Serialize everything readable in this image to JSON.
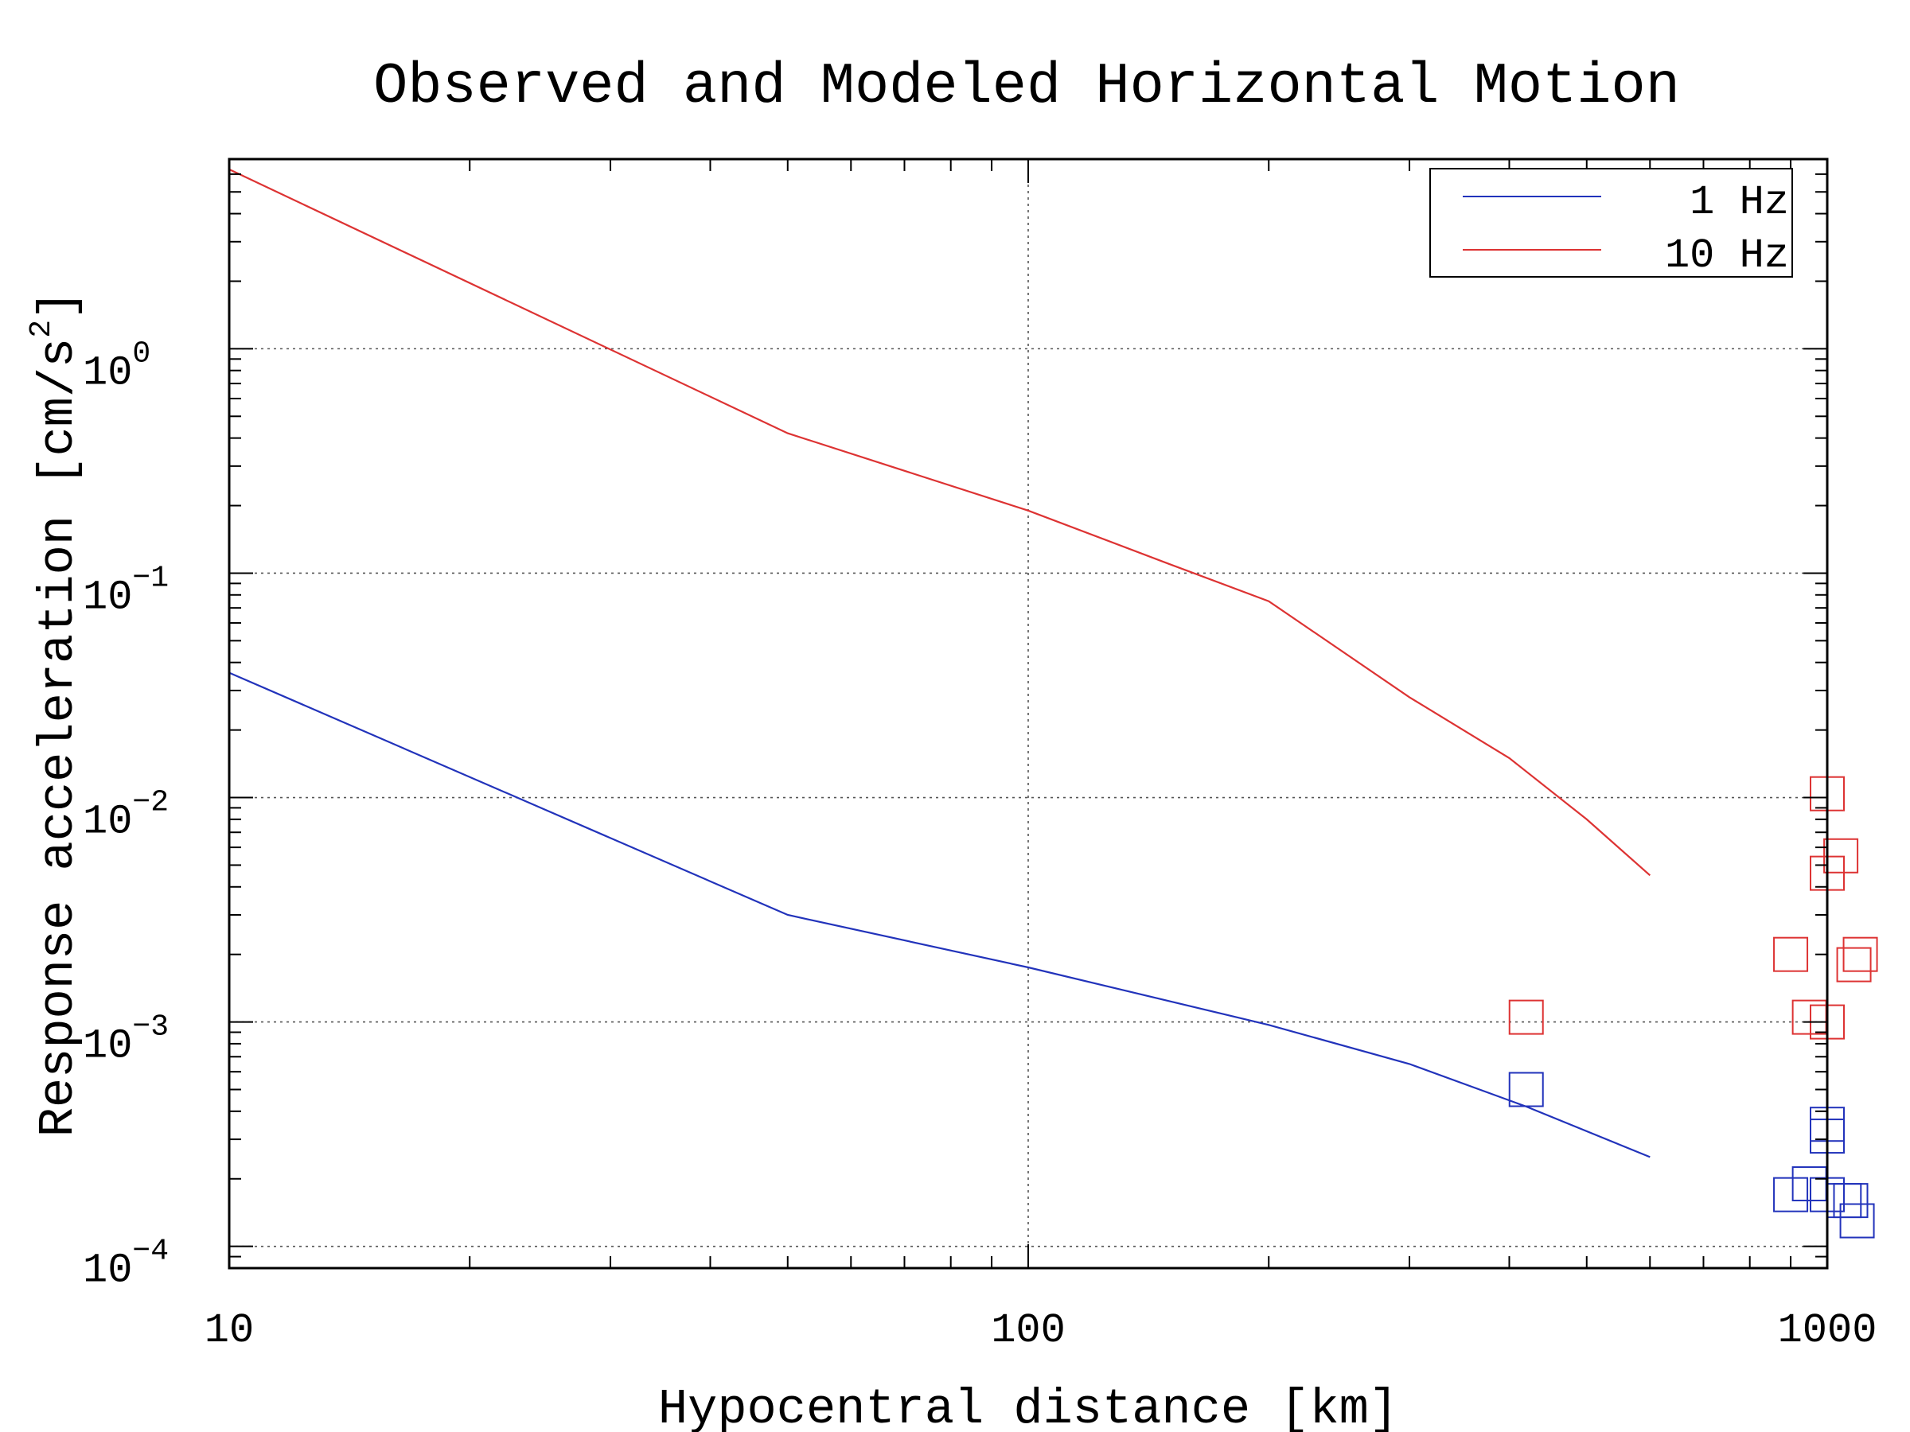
{
  "chart_data": {
    "type": "line",
    "title": "Observed and Modeled Horizontal Motion",
    "xlabel": "Hypocentral distance [km]",
    "ylabel_base": "Response acceleration [cm/s",
    "ylabel_sup": "2",
    "ylabel_close": "]",
    "xscale": "log",
    "yscale": "log",
    "xlim": [
      10,
      1000
    ],
    "ylim": [
      8e-05,
      7
    ],
    "x_ticks": [
      {
        "value": 10,
        "label": "10"
      },
      {
        "value": 100,
        "label": "100"
      },
      {
        "value": 1000,
        "label": "1000"
      }
    ],
    "y_ticks": [
      {
        "value": 1,
        "base": "10",
        "exp": "0"
      },
      {
        "value": 0.1,
        "base": "10",
        "exp": "−1"
      },
      {
        "value": 0.01,
        "base": "10",
        "exp": "−2"
      },
      {
        "value": 0.001,
        "base": "10",
        "exp": "−3"
      },
      {
        "value": 0.0001,
        "base": "10",
        "exp": "−4"
      }
    ],
    "grid": "dotted at major ticks",
    "legend_position": "top-right",
    "series": [
      {
        "name": "1 Hz",
        "color": "#2233bb",
        "line": [
          [
            10,
            0.036
          ],
          [
            50,
            0.003
          ],
          [
            100,
            0.00175
          ],
          [
            200,
            0.00097
          ],
          [
            300,
            0.00065
          ],
          [
            420,
            0.00042
          ],
          [
            600,
            0.00025
          ]
        ],
        "observed": [
          [
            420,
            0.0005
          ],
          [
            900,
            0.00017
          ],
          [
            950,
            0.00019
          ],
          [
            1000,
            0.00017
          ],
          [
            1050,
            0.00016
          ],
          [
            1000,
            0.00035
          ],
          [
            1000,
            0.00031
          ],
          [
            1070,
            0.00016
          ],
          [
            1090,
            0.00013
          ]
        ]
      },
      {
        "name": "10 Hz",
        "color": "#dd3333",
        "line": [
          [
            10,
            6.3
          ],
          [
            50,
            0.42
          ],
          [
            100,
            0.19
          ],
          [
            150,
            0.11
          ],
          [
            200,
            0.075
          ],
          [
            300,
            0.028
          ],
          [
            400,
            0.015
          ],
          [
            500,
            0.008
          ],
          [
            600,
            0.0045
          ]
        ],
        "observed": [
          [
            420,
            0.00105
          ],
          [
            900,
            0.002
          ],
          [
            950,
            0.00105
          ],
          [
            1000,
            0.0104
          ],
          [
            1000,
            0.0046
          ],
          [
            1040,
            0.0055
          ],
          [
            1000,
            0.001
          ],
          [
            1080,
            0.0018
          ],
          [
            1100,
            0.002
          ]
        ]
      }
    ]
  }
}
